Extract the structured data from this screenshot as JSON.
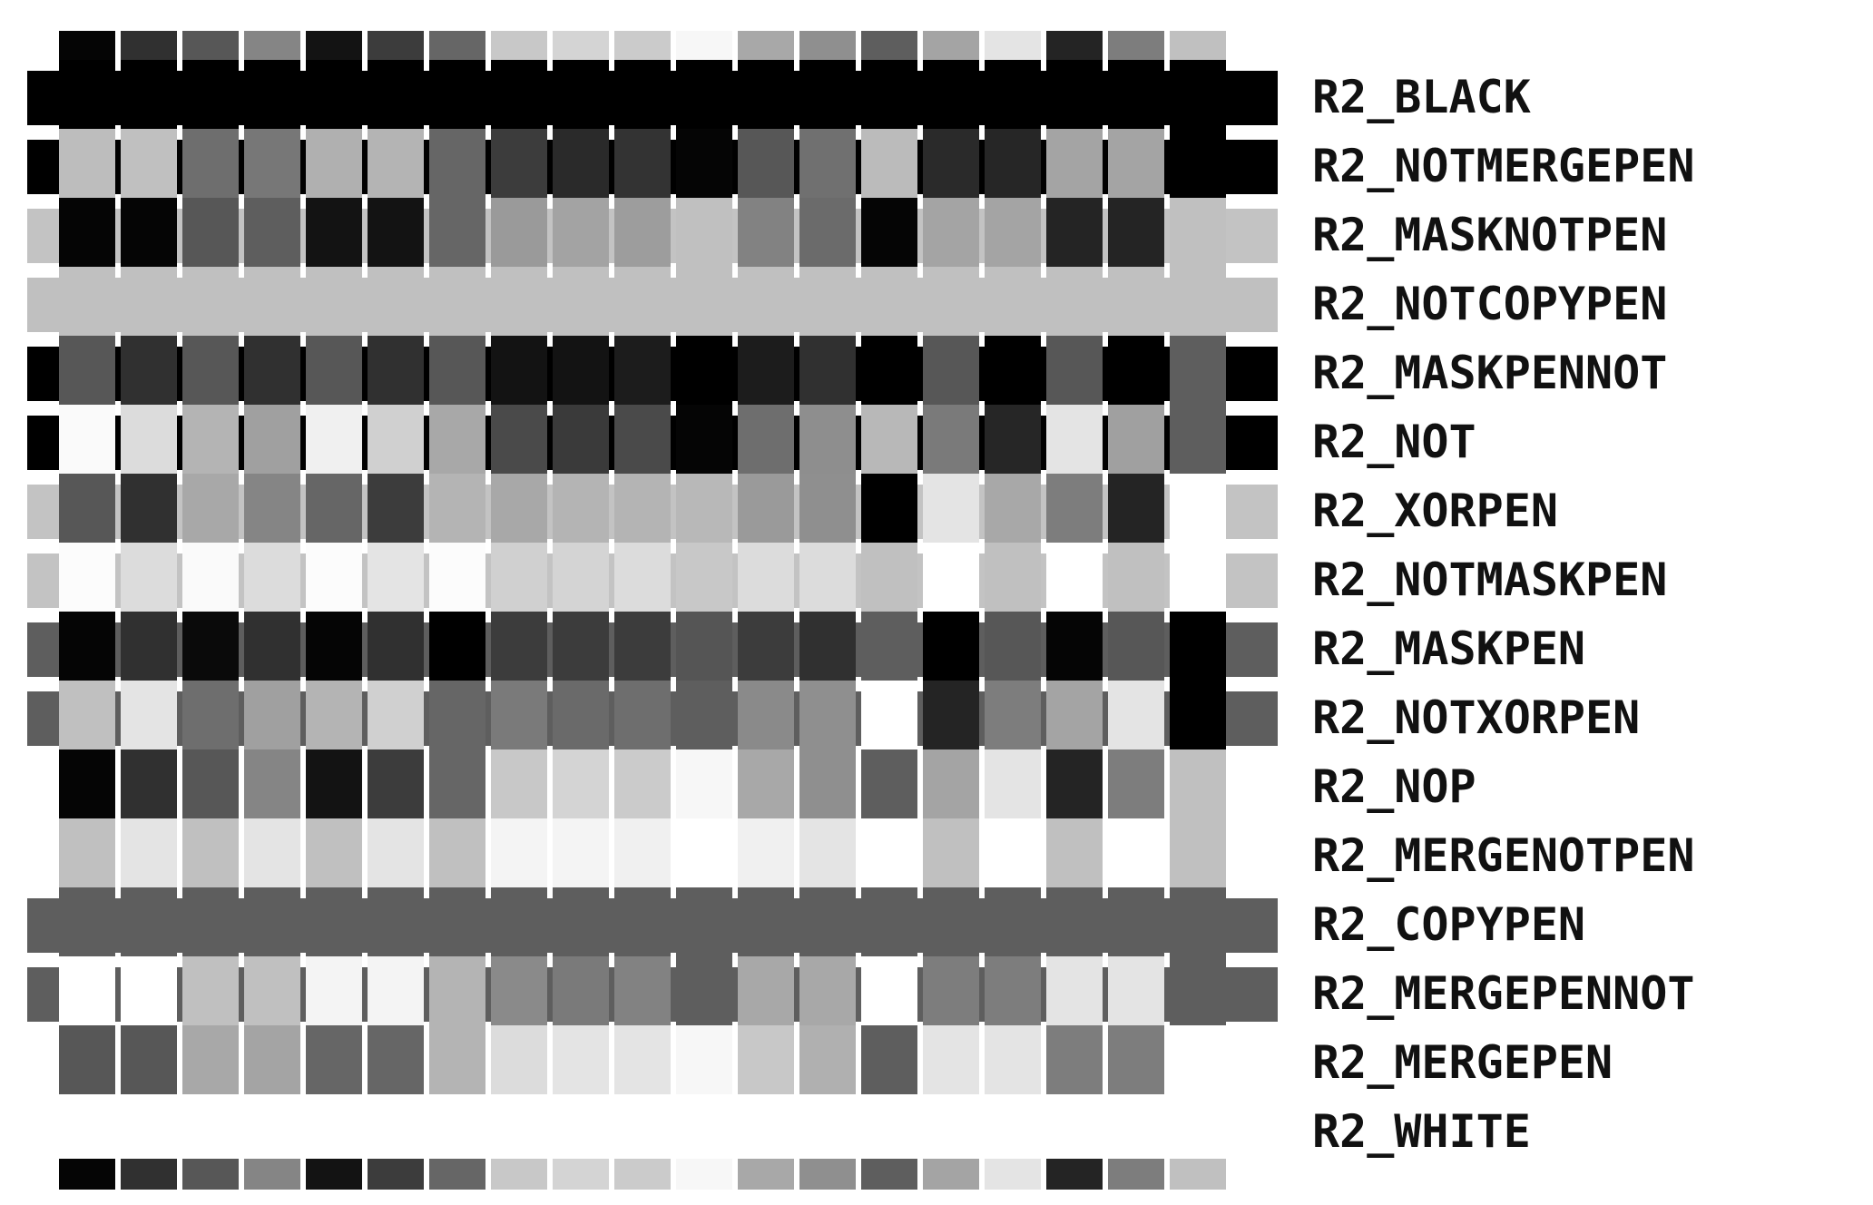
{
  "figure": {
    "palette": [
      "#050505",
      "#303030",
      "#575757",
      "#858585",
      "#131313",
      "#3c3c3c",
      "#666666",
      "#c8c8c8",
      "#d4d4d4",
      "#cbcbcb",
      "#f7f7f7",
      "#a8a8a8",
      "#8f8f8f",
      "#5e5e5e",
      "#a4a4a4",
      "#e4e4e4",
      "#242424",
      "#7d7d7d",
      "#c0c0c0"
    ],
    "rows": [
      {
        "label": "R2_BLACK",
        "color": "#000000"
      },
      {
        "label": "R2_NOTMERGEPEN",
        "color": "#000000"
      },
      {
        "label": "R2_MASKNOTPEN",
        "color": "#c3c3c3"
      },
      {
        "label": "R2_NOTCOPYPEN",
        "color": "#c0c0c0"
      },
      {
        "label": "R2_MASKPENNOT",
        "color": "#000000"
      },
      {
        "label": "R2_NOT",
        "color": "#000000"
      },
      {
        "label": "R2_XORPEN",
        "color": "#c3c3c3"
      },
      {
        "label": "R2_NOTMASKPEN",
        "color": "#c3c3c3"
      },
      {
        "label": "R2_MASKPEN",
        "color": "#5e5e5e"
      },
      {
        "label": "R2_NOTXORPEN",
        "color": "#5e5e5e"
      },
      {
        "label": "R2_NOP",
        "color": "#ffffff"
      },
      {
        "label": "R2_MERGENOTPEN",
        "color": "#ffffff"
      },
      {
        "label": "R2_COPYPEN",
        "color": "#5e5e5e"
      },
      {
        "label": "R2_MERGEPENNOT",
        "color": "#5e5e5e"
      },
      {
        "label": "R2_MERGEPEN",
        "color": "#ffffff"
      },
      {
        "label": "R2_WHITE",
        "color": "#ffffff"
      }
    ],
    "cells": [
      [
        "#000000",
        "#000000",
        "#000000",
        "#000000",
        "#000000",
        "#000000",
        "#000000",
        "#000000",
        "#000000",
        "#000000",
        "#000000",
        "#000000",
        "#000000",
        "#000000",
        "#000000",
        "#000000",
        "#000000",
        "#000000",
        "#000000"
      ],
      [
        "#bdbdbd",
        "#c0c0c0",
        "#6e6e6e",
        "#777777",
        "#b0b0b0",
        "#b4b4b4",
        "#666666",
        "#3c3c3c",
        "#2a2a2a",
        "#333333",
        "#050505",
        "#575757",
        "#707070",
        "#bbbbbb",
        "#2a2a2a",
        "#262626",
        "#a4a4a4",
        "#a4a4a4",
        "#000000"
      ],
      [
        "#050505",
        "#050505",
        "#575757",
        "#5e5e5e",
        "#131313",
        "#131313",
        "#666666",
        "#9a9a9a",
        "#a3a3a3",
        "#9d9d9d",
        "#c0c0c0",
        "#828282",
        "#6b6b6b",
        "#050505",
        "#a4a4a4",
        "#a4a4a4",
        "#242424",
        "#242424",
        "#c0c0c0"
      ],
      [
        "#c0c0c0",
        "#c0c0c0",
        "#c0c0c0",
        "#c0c0c0",
        "#c0c0c0",
        "#c0c0c0",
        "#c0c0c0",
        "#c0c0c0",
        "#c0c0c0",
        "#c0c0c0",
        "#c0c0c0",
        "#c0c0c0",
        "#c0c0c0",
        "#c0c0c0",
        "#c0c0c0",
        "#c0c0c0",
        "#c0c0c0",
        "#c0c0c0",
        "#c0c0c0"
      ],
      [
        "#575757",
        "#303030",
        "#575757",
        "#303030",
        "#575757",
        "#303030",
        "#575757",
        "#131313",
        "#131313",
        "#1c1c1c",
        "#000000",
        "#1c1c1c",
        "#303030",
        "#000000",
        "#575757",
        "#000000",
        "#575757",
        "#000000",
        "#5e5e5e"
      ],
      [
        "#fafafa",
        "#dcdcdc",
        "#b4b4b4",
        "#a0a0a0",
        "#f0f0f0",
        "#d0d0d0",
        "#a8a8a8",
        "#4a4a4a",
        "#3a3a3a",
        "#4a4a4a",
        "#050505",
        "#6e6e6e",
        "#8e8e8e",
        "#b8b8b8",
        "#7a7a7a",
        "#262626",
        "#e4e4e4",
        "#a0a0a0",
        "#5e5e5e"
      ],
      [
        "#575757",
        "#303030",
        "#a8a8a8",
        "#858585",
        "#666666",
        "#3c3c3c",
        "#b4b4b4",
        "#a8a8a8",
        "#b4b4b4",
        "#b4b4b4",
        "#b8b8b8",
        "#9a9a9a",
        "#8f8f8f",
        "#000000",
        "#e4e4e4",
        "#a8a8a8",
        "#7d7d7d",
        "#242424",
        "#ffffff"
      ],
      [
        "#fcfcfc",
        "#dcdcdc",
        "#fafafa",
        "#dcdcdc",
        "#fcfcfc",
        "#e4e4e4",
        "#fcfcfc",
        "#d0d0d0",
        "#d4d4d4",
        "#dcdcdc",
        "#c8c8c8",
        "#dcdcdc",
        "#dcdcdc",
        "#c0c0c0",
        "#ffffff",
        "#c0c0c0",
        "#ffffff",
        "#c0c0c0",
        "#ffffff"
      ],
      [
        "#050505",
        "#303030",
        "#0a0a0a",
        "#303030",
        "#050505",
        "#303030",
        "#000000",
        "#3c3c3c",
        "#3c3c3c",
        "#3c3c3c",
        "#555555",
        "#3c3c3c",
        "#303030",
        "#5e5e5e",
        "#000000",
        "#575757",
        "#050505",
        "#575757",
        "#000000"
      ],
      [
        "#c0c0c0",
        "#e4e4e4",
        "#6e6e6e",
        "#a0a0a0",
        "#b4b4b4",
        "#d0d0d0",
        "#666666",
        "#7a7a7a",
        "#6a6a6a",
        "#6e6e6e",
        "#5e5e5e",
        "#8a8a8a",
        "#8f8f8f",
        "#ffffff",
        "#242424",
        "#7d7d7d",
        "#a4a4a4",
        "#e4e4e4",
        "#000000"
      ],
      [
        "#050505",
        "#303030",
        "#575757",
        "#858585",
        "#131313",
        "#3c3c3c",
        "#666666",
        "#c8c8c8",
        "#d4d4d4",
        "#cbcbcb",
        "#f7f7f7",
        "#a8a8a8",
        "#8f8f8f",
        "#5e5e5e",
        "#a4a4a4",
        "#e4e4e4",
        "#242424",
        "#7d7d7d",
        "#c0c0c0"
      ],
      [
        "#c0c0c0",
        "#e4e4e4",
        "#c0c0c0",
        "#e4e4e4",
        "#c0c0c0",
        "#e4e4e4",
        "#c0c0c0",
        "#f4f4f4",
        "#f4f4f4",
        "#f0f0f0",
        "#ffffff",
        "#f0f0f0",
        "#e4e4e4",
        "#ffffff",
        "#c0c0c0",
        "#ffffff",
        "#c0c0c0",
        "#ffffff",
        "#c0c0c0"
      ],
      [
        "#5e5e5e",
        "#5e5e5e",
        "#5e5e5e",
        "#5e5e5e",
        "#5e5e5e",
        "#5e5e5e",
        "#5e5e5e",
        "#5e5e5e",
        "#5e5e5e",
        "#5e5e5e",
        "#5e5e5e",
        "#5e5e5e",
        "#5e5e5e",
        "#5e5e5e",
        "#5e5e5e",
        "#5e5e5e",
        "#5e5e5e",
        "#5e5e5e",
        "#5e5e5e"
      ],
      [
        "#ffffff",
        "#ffffff",
        "#c0c0c0",
        "#c0c0c0",
        "#f4f4f4",
        "#f4f4f4",
        "#b4b4b4",
        "#8a8a8a",
        "#7a7a7a",
        "#828282",
        "#5e5e5e",
        "#a8a8a8",
        "#a8a8a8",
        "#ffffff",
        "#7d7d7d",
        "#7d7d7d",
        "#e4e4e4",
        "#e4e4e4",
        "#5e5e5e"
      ],
      [
        "#575757",
        "#575757",
        "#a8a8a8",
        "#a4a4a4",
        "#666666",
        "#666666",
        "#b4b4b4",
        "#dcdcdc",
        "#e4e4e4",
        "#e4e4e4",
        "#f7f7f7",
        "#c8c8c8",
        "#b0b0b0",
        "#5e5e5e",
        "#e4e4e4",
        "#e4e4e4",
        "#7d7d7d",
        "#7d7d7d",
        "#ffffff"
      ],
      [
        "#ffffff",
        "#ffffff",
        "#ffffff",
        "#ffffff",
        "#ffffff",
        "#ffffff",
        "#ffffff",
        "#ffffff",
        "#ffffff",
        "#ffffff",
        "#ffffff",
        "#ffffff",
        "#ffffff",
        "#ffffff",
        "#ffffff",
        "#ffffff",
        "#ffffff",
        "#ffffff",
        "#ffffff"
      ]
    ]
  }
}
